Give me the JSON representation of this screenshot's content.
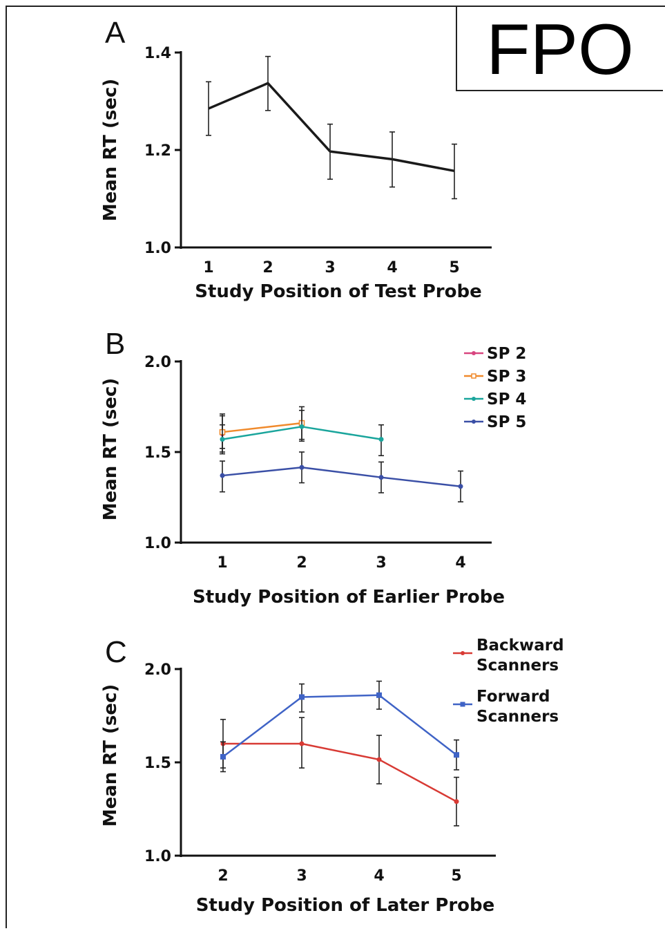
{
  "stamp": {
    "text": "FPO"
  },
  "chart_data": [
    {
      "panel": "A",
      "type": "line",
      "xlabel": "Study Position of Test Probe",
      "ylabel": "Mean RT (sec)",
      "categories": [
        "1",
        "2",
        "3",
        "4",
        "5"
      ],
      "ylim": [
        1.0,
        1.4
      ],
      "yticks": [
        "1.0",
        "1.2",
        "1.4"
      ],
      "series": [
        {
          "color": "#1a1a1a",
          "marker": "none",
          "values": [
            1.285,
            1.337,
            1.197,
            1.181,
            1.157
          ],
          "err_low": [
            1.23,
            1.281,
            1.14,
            1.124,
            1.1
          ],
          "err_high": [
            1.34,
            1.392,
            1.253,
            1.237,
            1.212
          ]
        }
      ]
    },
    {
      "panel": "B",
      "type": "line",
      "xlabel": "Study Position of Earlier Probe",
      "ylabel": "Mean RT (sec)",
      "categories": [
        "1",
        "2",
        "3",
        "4"
      ],
      "ylim": [
        1.0,
        2.0
      ],
      "yticks": [
        "1.0",
        "1.5",
        "2.0"
      ],
      "legend": "top-right",
      "series": [
        {
          "name": "SP 2",
          "color": "#d8457f",
          "marker": "dot",
          "values": [
            1.6,
            null,
            null,
            null
          ],
          "err_low": [
            1.5,
            null,
            null,
            null
          ],
          "err_high": [
            1.7,
            null,
            null,
            null
          ]
        },
        {
          "name": "SP 3",
          "color": "#f08a2c",
          "marker": "square-open",
          "values": [
            1.61,
            1.66,
            null,
            null
          ],
          "err_low": [
            1.52,
            1.57,
            null,
            null
          ],
          "err_high": [
            1.71,
            1.75,
            null,
            null
          ]
        },
        {
          "name": "SP 4",
          "color": "#1aa59c",
          "marker": "dot",
          "values": [
            1.57,
            1.64,
            1.57,
            null
          ],
          "err_low": [
            1.49,
            1.56,
            1.48,
            null
          ],
          "err_high": [
            1.65,
            1.73,
            1.65,
            null
          ]
        },
        {
          "name": "SP 5",
          "color": "#3a4fa6",
          "marker": "dot",
          "values": [
            1.37,
            1.415,
            1.36,
            1.31
          ],
          "err_low": [
            1.28,
            1.33,
            1.275,
            1.225
          ],
          "err_high": [
            1.45,
            1.5,
            1.445,
            1.395
          ]
        }
      ]
    },
    {
      "panel": "C",
      "type": "line",
      "xlabel": "Study Position of Later Probe",
      "ylabel": "Mean RT (sec)",
      "categories": [
        "2",
        "3",
        "4",
        "5"
      ],
      "ylim": [
        1.0,
        2.0
      ],
      "yticks": [
        "1.0",
        "1.5",
        "2.0"
      ],
      "legend": "top-right",
      "series": [
        {
          "name": "Backward Scanners",
          "name_lines": [
            "Backward",
            "Scanners"
          ],
          "color": "#d83a34",
          "marker": "dot",
          "values": [
            1.6,
            1.6,
            1.515,
            1.29
          ],
          "err_low": [
            1.47,
            1.47,
            1.385,
            1.16
          ],
          "err_high": [
            1.73,
            1.74,
            1.645,
            1.42
          ]
        },
        {
          "name": "Forward Scanners",
          "name_lines": [
            "Forward",
            "Scanners"
          ],
          "color": "#3f63c6",
          "marker": "square",
          "values": [
            1.53,
            1.85,
            1.86,
            1.54
          ],
          "err_low": [
            1.45,
            1.77,
            1.785,
            1.46
          ],
          "err_high": [
            1.61,
            1.92,
            1.935,
            1.62
          ]
        }
      ]
    }
  ]
}
